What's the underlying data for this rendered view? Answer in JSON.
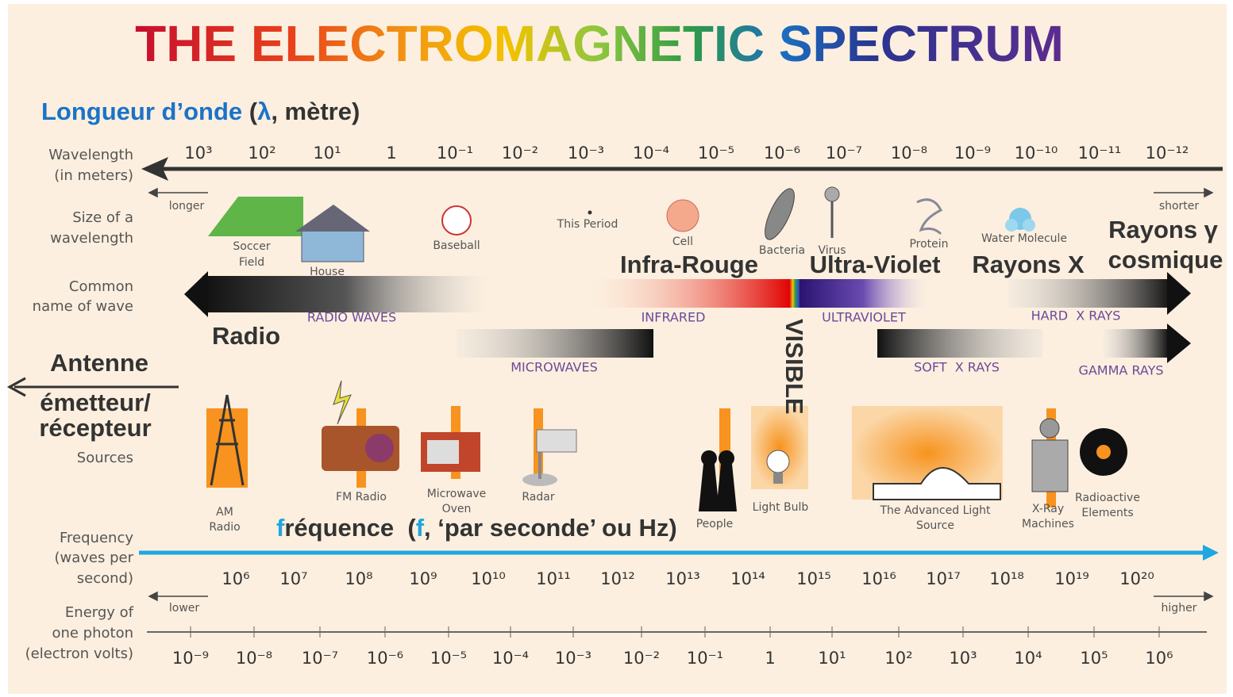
{
  "title": "THE ELECTROMAGNETIC SPECTRUM",
  "annotations_fr": {
    "wavelength": [
      "Longueur d’onde",
      " (",
      "λ",
      ", mètre)"
    ],
    "infrared": "Infra-Rouge",
    "ultraviolet": "Ultra-Violet",
    "xrays": "Rayons X",
    "gamma": [
      "Rayons γ",
      "cosmique"
    ],
    "radio": "Radio",
    "antenna": "Antenne",
    "transceiver": [
      "émetteur/",
      "récepteur"
    ],
    "visible": "VISIBLE",
    "frequency": [
      "f",
      "réquence  (",
      "f",
      ", ‘par seconde’ ou Hz)"
    ]
  },
  "row_labels": {
    "wavelength": [
      "Wavelength",
      "(in meters)"
    ],
    "size": [
      "Size of a",
      "wavelength"
    ],
    "common_name": [
      "Common",
      "name of wave"
    ],
    "sources": [
      "Sources"
    ],
    "frequency": [
      "Frequency",
      "(waves per",
      "second)"
    ],
    "energy": [
      "Energy of",
      "one photon",
      "(electron volts)"
    ]
  },
  "wavelength": {
    "ticks": [
      "10³",
      "10²",
      "10¹",
      "1",
      "10⁻¹",
      "10⁻²",
      "10⁻³",
      "10⁻⁴",
      "10⁻⁵",
      "10⁻⁶",
      "10⁻⁷",
      "10⁻⁸",
      "10⁻⁹",
      "10⁻¹⁰",
      "10⁻¹¹",
      "10⁻¹²"
    ],
    "longer": "longer",
    "shorter": "shorter"
  },
  "sizes": [
    [
      "Soccer",
      "Field"
    ],
    [
      "House"
    ],
    [
      "Baseball"
    ],
    [
      "This Period"
    ],
    [
      "Cell"
    ],
    [
      "Bacteria"
    ],
    [
      "Virus"
    ],
    [
      "Protein"
    ],
    [
      "Water Molecule"
    ]
  ],
  "waves": [
    "RADIO WAVES",
    "INFRARED",
    "ULTRAVIOLET",
    "HARD  X RAYS",
    "MICROWAVES",
    "SOFT  X RAYS",
    "GAMMA RAYS"
  ],
  "sources": [
    [
      "AM",
      "Radio"
    ],
    [
      "FM Radio"
    ],
    [
      "Microwave",
      "Oven"
    ],
    [
      "Radar"
    ],
    [
      "People"
    ],
    [
      "Light Bulb"
    ],
    [
      "The Advanced Light",
      "Source"
    ],
    [
      "X-Ray",
      "Machines"
    ],
    [
      "Radioactive",
      "Elements"
    ]
  ],
  "frequency": {
    "ticks": [
      "10⁶",
      "10⁷",
      "10⁸",
      "10⁹",
      "10¹⁰",
      "10¹¹",
      "10¹²",
      "10¹³",
      "10¹⁴",
      "10¹⁵",
      "10¹⁶",
      "10¹⁷",
      "10¹⁸",
      "10¹⁹",
      "10²⁰"
    ],
    "lower": "lower",
    "higher": "higher"
  },
  "energy": {
    "ticks": [
      "10⁻⁹",
      "10⁻⁸",
      "10⁻⁷",
      "10⁻⁶",
      "10⁻⁵",
      "10⁻⁴",
      "10⁻³",
      "10⁻²",
      "10⁻¹",
      "1",
      "10¹",
      "10²",
      "10³",
      "10⁴",
      "10⁵",
      "10⁶"
    ]
  }
}
